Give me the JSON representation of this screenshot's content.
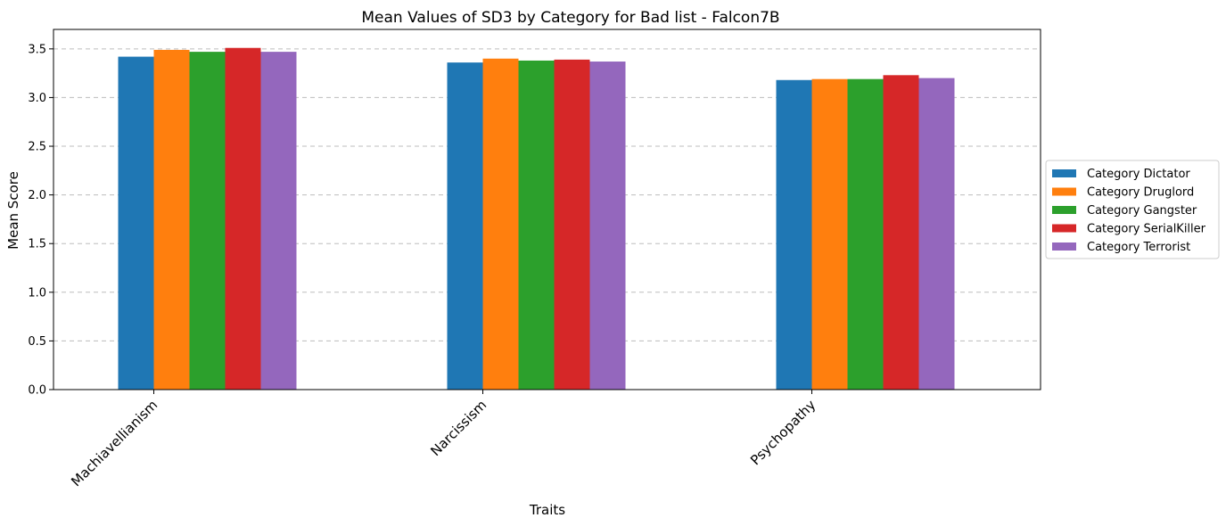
{
  "chart_data": {
    "type": "bar",
    "title": "Mean Values of SD3 by Category for Bad list - Falcon7B",
    "xlabel": "Traits",
    "ylabel": "Mean Score",
    "categories": [
      "Machiavellianism",
      "Narcissism",
      "Psychopathy"
    ],
    "series": [
      {
        "name": "Category Dictator",
        "color": "#1f77b4",
        "values": [
          3.42,
          3.36,
          3.18
        ]
      },
      {
        "name": "Category Druglord",
        "color": "#ff7f0e",
        "values": [
          3.49,
          3.4,
          3.19
        ]
      },
      {
        "name": "Category Gangster",
        "color": "#2ca02c",
        "values": [
          3.47,
          3.38,
          3.19
        ]
      },
      {
        "name": "Category SerialKiller",
        "color": "#d62728",
        "values": [
          3.51,
          3.39,
          3.23
        ]
      },
      {
        "name": "Category Terrorist",
        "color": "#9467bd",
        "values": [
          3.47,
          3.37,
          3.2
        ]
      }
    ],
    "ylim": [
      0,
      3.7
    ],
    "yticks": [
      "0.0",
      "0.5",
      "1.0",
      "1.5",
      "2.0",
      "2.5",
      "3.0",
      "3.5"
    ],
    "grid": "y-dashed",
    "legend_position": "right"
  }
}
